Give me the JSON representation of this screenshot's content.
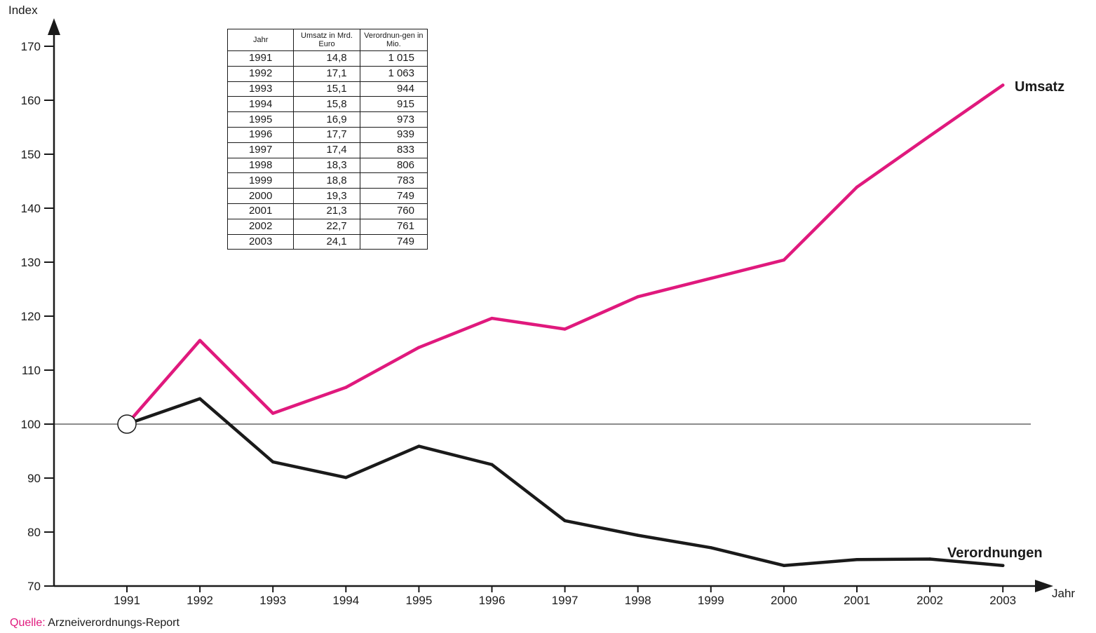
{
  "chart_data": {
    "type": "line",
    "ylabel": "Index",
    "xlabel": "Jahr",
    "ylim": [
      70,
      170
    ],
    "yticks": [
      70,
      80,
      90,
      100,
      110,
      120,
      130,
      140,
      150,
      160,
      170
    ],
    "reference_line": 100,
    "categories": [
      "1991",
      "1992",
      "1993",
      "1994",
      "1995",
      "1996",
      "1997",
      "1998",
      "1999",
      "2000",
      "2001",
      "2002",
      "2003"
    ],
    "series": [
      {
        "name": "Umsatz",
        "color": "#e0197d",
        "values": [
          100,
          115.5,
          102,
          106.8,
          114.2,
          119.6,
          117.6,
          123.6,
          127,
          130.4,
          143.9,
          153.4,
          162.8
        ]
      },
      {
        "name": "Verordnungen",
        "color": "#1a1a1a",
        "values": [
          100,
          104.7,
          93,
          90.1,
          95.9,
          92.5,
          82.1,
          79.4,
          77.1,
          73.8,
          74.9,
          75,
          73.8
        ]
      }
    ],
    "table": {
      "headers": [
        "Jahr",
        "Umsatz in Mrd. Euro",
        "Verordnun-gen in Mio."
      ],
      "rows": [
        [
          "1991",
          "14,8",
          "1 015"
        ],
        [
          "1992",
          "17,1",
          "1 063"
        ],
        [
          "1993",
          "15,1",
          "944"
        ],
        [
          "1994",
          "15,8",
          "915"
        ],
        [
          "1995",
          "16,9",
          "973"
        ],
        [
          "1996",
          "17,7",
          "939"
        ],
        [
          "1997",
          "17,4",
          "833"
        ],
        [
          "1998",
          "18,3",
          "806"
        ],
        [
          "1999",
          "18,8",
          "783"
        ],
        [
          "2000",
          "19,3",
          "749"
        ],
        [
          "2001",
          "21,3",
          "760"
        ],
        [
          "2002",
          "22,7",
          "761"
        ],
        [
          "2003",
          "24,1",
          "749"
        ]
      ]
    }
  },
  "source": {
    "key": "Quelle:",
    "value": " Arzneiverordnungs-Report"
  }
}
